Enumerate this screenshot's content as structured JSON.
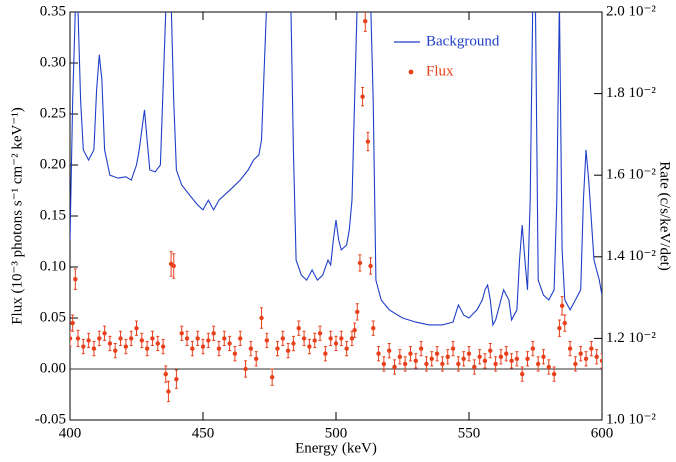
{
  "chart_data": {
    "type": "combo",
    "xlabel": "Energy (keV)",
    "ylabel": "Flux (10⁻³ photons s⁻¹ cm⁻² keV⁻¹)",
    "y2label": "Rate (c/s/keV/det)",
    "xlim": [
      400,
      600
    ],
    "xticks": [
      400,
      450,
      500,
      550,
      600
    ],
    "ylim": [
      -0.05,
      0.35
    ],
    "yticks": [
      {
        "value": -0.05,
        "label": "-0.05"
      },
      {
        "value": 0,
        "label": "0.00"
      },
      {
        "value": 0.05,
        "label": "0.05"
      },
      {
        "value": 0.1,
        "label": "0.10"
      },
      {
        "value": 0.15,
        "label": "0.15"
      },
      {
        "value": 0.2,
        "label": "0.20"
      },
      {
        "value": 0.25,
        "label": "0.25"
      },
      {
        "value": 0.3,
        "label": "0.30"
      },
      {
        "value": 0.35,
        "label": "0.35"
      }
    ],
    "y2lim": [
      0.01,
      0.02
    ],
    "y2ticks": [
      {
        "value": 0.01,
        "label": "1.0 10⁻²"
      },
      {
        "value": 0.012,
        "label": "1.2 10⁻²"
      },
      {
        "value": 0.014,
        "label": "1.4 10⁻²"
      },
      {
        "value": 0.016,
        "label": "1.6 10⁻²"
      },
      {
        "value": 0.018,
        "label": "1.8 10⁻²"
      },
      {
        "value": 0.02,
        "label": "2.0 10⁻²"
      }
    ],
    "series": [
      {
        "name": "Background",
        "type": "line",
        "axis": "y2",
        "color": "#1f3fc8",
        "x": [
          400,
          401,
          402,
          403,
          404,
          405,
          407,
          409,
          410,
          411,
          412,
          413,
          415,
          418,
          421,
          423,
          425,
          426,
          427,
          428,
          429,
          430,
          432,
          434,
          436,
          437,
          438,
          439,
          440,
          442,
          445,
          448,
          450,
          452,
          454,
          456,
          458,
          461,
          464,
          467,
          469,
          471,
          472,
          474,
          483,
          484,
          485,
          487,
          489,
          491,
          493,
          495,
          497,
          498,
          499,
          500,
          501,
          502,
          504,
          505,
          506,
          507,
          508,
          513,
          514,
          515,
          517,
          520,
          525,
          530,
          535,
          540,
          544,
          546,
          548,
          550,
          553,
          555,
          556,
          557,
          558,
          559,
          560,
          562,
          563,
          565,
          566,
          568,
          569,
          570,
          571,
          572,
          573,
          574,
          575,
          576,
          578,
          580,
          582,
          583,
          584,
          585,
          586,
          588,
          590,
          592,
          593,
          594,
          595,
          597,
          599,
          600
        ],
        "values": [
          0.01441,
          0.01784,
          0.02005,
          0.02005,
          0.01784,
          0.01662,
          0.01637,
          0.01662,
          0.01809,
          0.01895,
          0.01833,
          0.01662,
          0.016,
          0.01593,
          0.01596,
          0.01588,
          0.01625,
          0.01662,
          0.01711,
          0.0176,
          0.01686,
          0.01613,
          0.01608,
          0.01625,
          0.02005,
          0.02029,
          0.02029,
          0.01784,
          0.01613,
          0.01576,
          0.01551,
          0.01527,
          0.01515,
          0.01539,
          0.01515,
          0.01539,
          0.01551,
          0.01569,
          0.01588,
          0.01613,
          0.01637,
          0.0165,
          0.01686,
          0.02029,
          0.02029,
          0.01662,
          0.01392,
          0.01355,
          0.01343,
          0.01368,
          0.01343,
          0.01355,
          0.01392,
          0.0138,
          0.01441,
          0.0149,
          0.01441,
          0.01417,
          0.01429,
          0.01466,
          0.01539,
          0.01784,
          0.02029,
          0.02029,
          0.01784,
          0.01343,
          0.01294,
          0.0127,
          0.0125,
          0.0124,
          0.01233,
          0.01233,
          0.0124,
          0.01282,
          0.01257,
          0.0125,
          0.0127,
          0.01294,
          0.01319,
          0.01331,
          0.01294,
          0.01233,
          0.01245,
          0.01294,
          0.01319,
          0.01294,
          0.01245,
          0.0127,
          0.01392,
          0.01478,
          0.01392,
          0.01319,
          0.01539,
          0.02029,
          0.02005,
          0.01343,
          0.01306,
          0.01294,
          0.01319,
          0.01539,
          0.02029,
          0.01417,
          0.01294,
          0.0127,
          0.01294,
          0.01319,
          0.01539,
          0.01662,
          0.01588,
          0.01392,
          0.01343,
          0.01306
        ]
      },
      {
        "name": "Flux",
        "type": "scatter",
        "color": "#e8401c",
        "x": [
          400,
          401,
          402,
          403,
          405,
          407,
          409,
          411,
          413,
          415,
          417,
          419,
          421,
          423,
          425,
          427,
          429,
          431,
          433,
          435,
          436,
          437,
          438,
          439,
          440,
          442,
          444,
          446,
          448,
          450,
          452,
          454,
          456,
          458,
          460,
          462,
          464,
          466,
          468,
          470,
          472,
          474,
          476,
          478,
          480,
          482,
          484,
          486,
          488,
          490,
          492,
          494,
          496,
          498,
          500,
          502,
          504,
          506,
          507,
          508,
          509,
          510,
          511,
          512,
          513,
          514,
          516,
          518,
          520,
          522,
          524,
          526,
          528,
          530,
          532,
          534,
          536,
          538,
          540,
          542,
          544,
          546,
          548,
          550,
          552,
          554,
          556,
          558,
          560,
          562,
          564,
          566,
          568,
          570,
          572,
          574,
          576,
          578,
          580,
          582,
          584,
          585,
          586,
          588,
          590,
          592,
          594,
          596,
          598,
          600
        ],
        "values": [
          0.03,
          0.045,
          0.088,
          0.03,
          0.022,
          0.028,
          0.02,
          0.03,
          0.035,
          0.025,
          0.018,
          0.03,
          0.022,
          0.03,
          0.04,
          0.028,
          0.02,
          0.03,
          0.025,
          0.022,
          -0.005,
          -0.022,
          0.103,
          0.101,
          -0.01,
          0.035,
          0.03,
          0.02,
          0.03,
          0.022,
          0.028,
          0.035,
          0.02,
          0.03,
          0.025,
          0.015,
          0.03,
          0.0,
          0.02,
          0.01,
          0.05,
          0.028,
          -0.008,
          0.02,
          0.03,
          0.018,
          0.025,
          0.04,
          0.03,
          0.022,
          0.028,
          0.035,
          0.015,
          0.03,
          0.025,
          0.03,
          0.02,
          0.03,
          0.038,
          0.056,
          0.104,
          0.267,
          0.341,
          0.223,
          0.101,
          0.04,
          0.015,
          0.005,
          0.018,
          0.002,
          0.012,
          0.005,
          0.015,
          0.008,
          0.02,
          0.005,
          0.01,
          0.015,
          0.005,
          0.012,
          0.02,
          0.005,
          0.01,
          0.015,
          0.002,
          0.012,
          0.008,
          0.018,
          0.005,
          0.012,
          0.015,
          0.008,
          0.01,
          -0.005,
          0.01,
          0.02,
          0.005,
          0.012,
          0.002,
          -0.005,
          0.04,
          0.062,
          0.045,
          0.02,
          0.005,
          0.015,
          0.01,
          0.02,
          0.012,
          0.008
        ],
        "errors": [
          0.008,
          0.008,
          0.01,
          0.008,
          0.007,
          0.007,
          0.007,
          0.007,
          0.007,
          0.007,
          0.007,
          0.007,
          0.007,
          0.007,
          0.007,
          0.007,
          0.007,
          0.007,
          0.007,
          0.007,
          0.008,
          0.01,
          0.012,
          0.012,
          0.009,
          0.007,
          0.007,
          0.007,
          0.007,
          0.007,
          0.007,
          0.007,
          0.007,
          0.007,
          0.007,
          0.007,
          0.007,
          0.008,
          0.007,
          0.007,
          0.01,
          0.007,
          0.008,
          0.007,
          0.007,
          0.007,
          0.007,
          0.007,
          0.007,
          0.007,
          0.007,
          0.007,
          0.007,
          0.007,
          0.007,
          0.007,
          0.007,
          0.007,
          0.007,
          0.008,
          0.008,
          0.009,
          0.01,
          0.009,
          0.008,
          0.007,
          0.007,
          0.007,
          0.007,
          0.007,
          0.007,
          0.007,
          0.007,
          0.007,
          0.007,
          0.007,
          0.007,
          0.007,
          0.007,
          0.007,
          0.007,
          0.007,
          0.007,
          0.007,
          0.007,
          0.007,
          0.007,
          0.007,
          0.007,
          0.007,
          0.007,
          0.007,
          0.007,
          0.007,
          0.007,
          0.007,
          0.007,
          0.007,
          0.007,
          0.007,
          0.008,
          0.009,
          0.008,
          0.007,
          0.007,
          0.007,
          0.007,
          0.007,
          0.007,
          0.007
        ]
      }
    ]
  }
}
